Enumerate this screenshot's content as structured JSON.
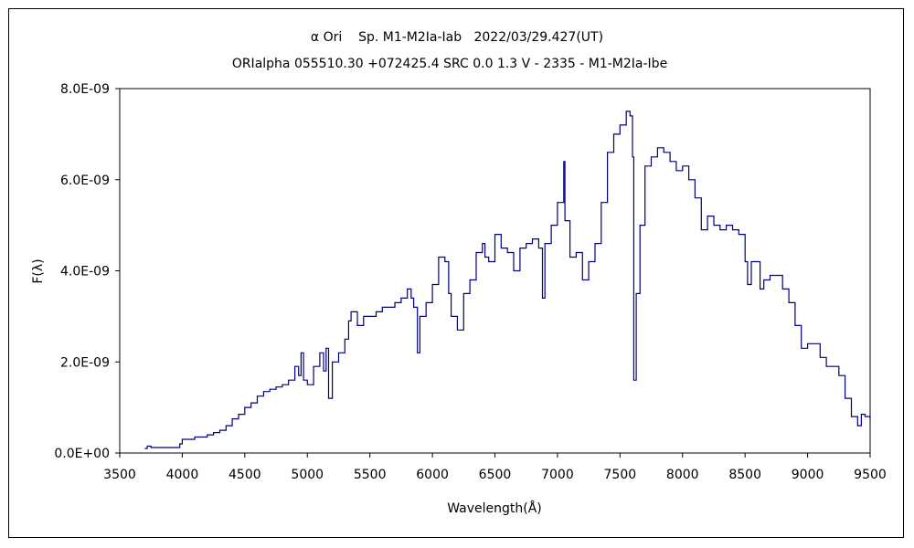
{
  "chart_data": {
    "type": "line",
    "title": "α Ori    Sp. M1-M2Ia-Iab   2022/03/29.427(UT)",
    "subtitle": "ORIalpha 055510.30 +072425.4 SRC 0.0 1.3 V - 2335 - M1-M2Ia-Ibe",
    "xlabel": "Wavelength(Å)",
    "ylabel": "F(λ)",
    "xlim": [
      3500,
      9500
    ],
    "ylim": [
      0,
      8e-09
    ],
    "xticks": [
      "3500",
      "4000",
      "4500",
      "5000",
      "5500",
      "6000",
      "6500",
      "7000",
      "7500",
      "8000",
      "8500",
      "9000",
      "9500"
    ],
    "yticks": [
      "0.0E+00",
      "2.0E-09",
      "4.0E-09",
      "6.0E-09",
      "8.0E-09"
    ],
    "grid": false,
    "legend": "none",
    "series_color": "#000080",
    "series": [
      {
        "name": "F(λ)",
        "unit_scale": 1e-09,
        "x": [
          3700,
          3720,
          3750,
          3800,
          3950,
          3980,
          4000,
          4100,
          4200,
          4250,
          4300,
          4350,
          4400,
          4450,
          4500,
          4550,
          4600,
          4650,
          4700,
          4750,
          4800,
          4850,
          4900,
          4930,
          4950,
          4970,
          5000,
          5050,
          5100,
          5130,
          5150,
          5170,
          5200,
          5250,
          5300,
          5330,
          5350,
          5400,
          5450,
          5500,
          5550,
          5600,
          5650,
          5700,
          5750,
          5800,
          5830,
          5850,
          5880,
          5900,
          5950,
          6000,
          6050,
          6100,
          6130,
          6150,
          6200,
          6250,
          6300,
          6350,
          6400,
          6420,
          6450,
          6500,
          6550,
          6600,
          6650,
          6700,
          6750,
          6800,
          6850,
          6880,
          6900,
          6950,
          7000,
          7050,
          7060,
          7100,
          7150,
          7200,
          7250,
          7300,
          7350,
          7400,
          7450,
          7500,
          7550,
          7580,
          7600,
          7610,
          7630,
          7660,
          7700,
          7750,
          7800,
          7850,
          7900,
          7950,
          8000,
          8050,
          8100,
          8150,
          8200,
          8250,
          8300,
          8350,
          8400,
          8450,
          8500,
          8520,
          8550,
          8600,
          8620,
          8650,
          8700,
          8800,
          8850,
          8900,
          8950,
          9000,
          9050,
          9100,
          9150,
          9200,
          9250,
          9300,
          9350,
          9400,
          9430,
          9460,
          9500
        ],
        "y": [
          0.1,
          0.15,
          0.12,
          0.12,
          0.12,
          0.2,
          0.3,
          0.35,
          0.4,
          0.45,
          0.5,
          0.6,
          0.75,
          0.85,
          1.0,
          1.1,
          1.25,
          1.35,
          1.4,
          1.45,
          1.5,
          1.6,
          1.9,
          1.7,
          2.2,
          1.6,
          1.5,
          1.9,
          2.2,
          1.8,
          2.3,
          1.2,
          2.0,
          2.2,
          2.5,
          2.9,
          3.1,
          2.8,
          3.0,
          3.0,
          3.1,
          3.2,
          3.2,
          3.3,
          3.4,
          3.6,
          3.4,
          3.2,
          2.2,
          3.0,
          3.3,
          3.7,
          4.3,
          4.2,
          3.5,
          3.0,
          2.7,
          3.5,
          3.8,
          4.4,
          4.6,
          4.3,
          4.2,
          4.8,
          4.5,
          4.4,
          4.0,
          4.5,
          4.6,
          4.7,
          4.5,
          3.4,
          4.6,
          5.0,
          5.5,
          6.4,
          5.1,
          4.3,
          4.4,
          3.8,
          4.2,
          4.6,
          5.5,
          6.6,
          7.0,
          7.2,
          7.5,
          7.4,
          6.5,
          1.6,
          3.5,
          5.0,
          6.3,
          6.5,
          6.7,
          6.6,
          6.4,
          6.2,
          6.3,
          6.0,
          5.6,
          4.9,
          5.2,
          5.0,
          4.9,
          5.0,
          4.9,
          4.8,
          4.2,
          3.7,
          4.2,
          4.2,
          3.6,
          3.8,
          3.9,
          3.6,
          3.3,
          2.8,
          2.3,
          2.4,
          2.4,
          2.1,
          1.9,
          1.9,
          1.7,
          1.2,
          0.8,
          0.6,
          0.85,
          0.8,
          0.75
        ]
      }
    ]
  }
}
